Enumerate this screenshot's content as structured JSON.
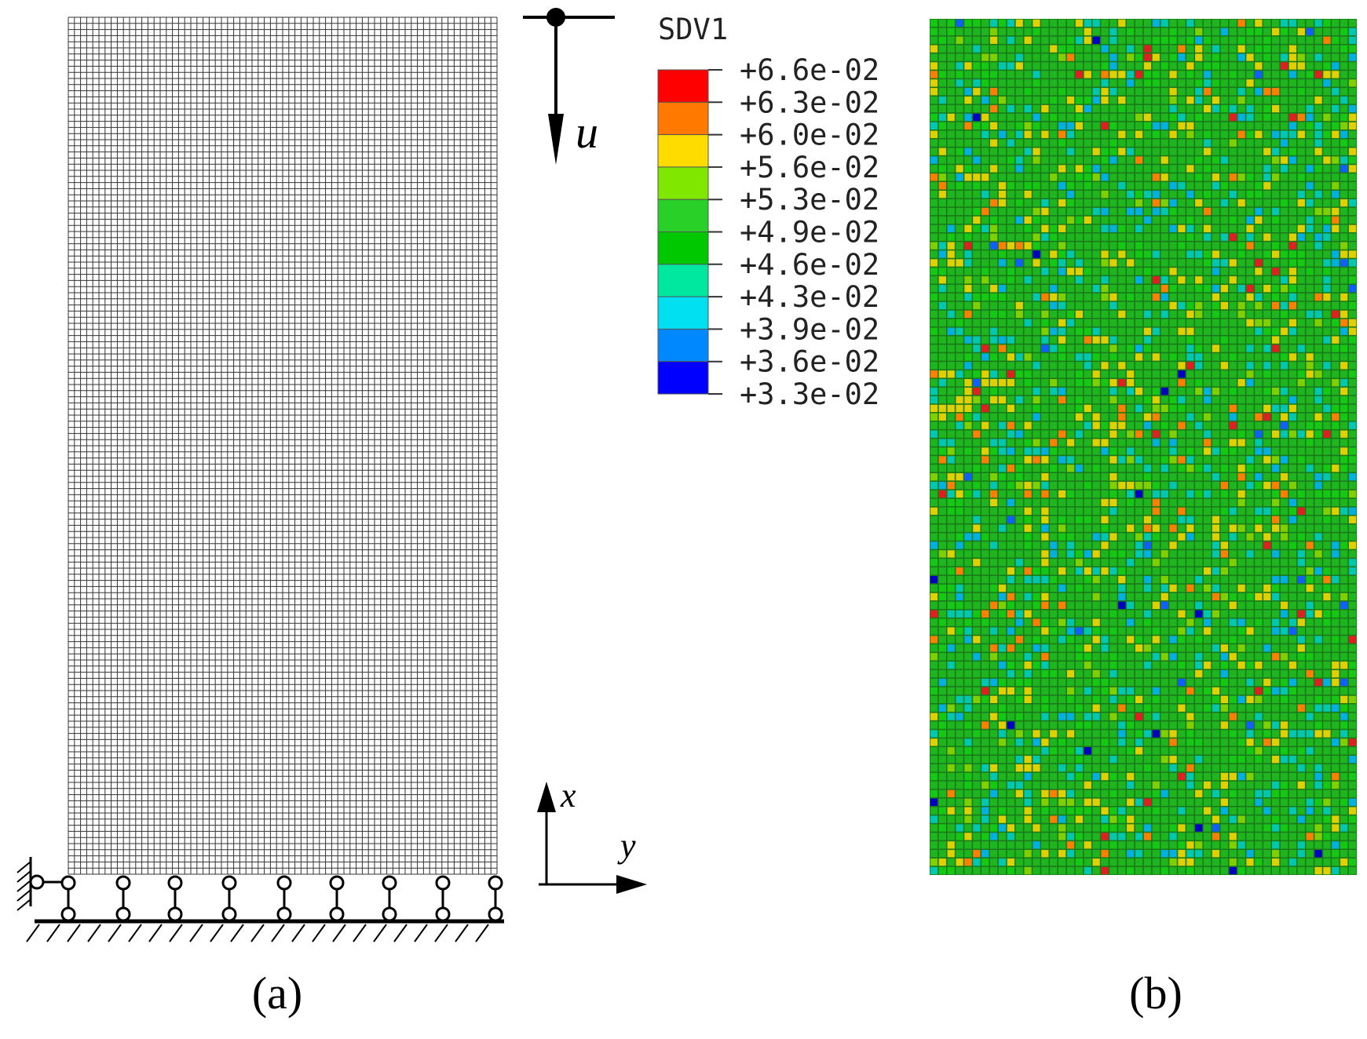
{
  "legend": {
    "title": "SDV1",
    "labels": [
      "+6.6e-02",
      "+6.3e-02",
      "+6.0e-02",
      "+5.6e-02",
      "+5.3e-02",
      "+4.9e-02",
      "+4.6e-02",
      "+4.3e-02",
      "+3.9e-02",
      "+3.6e-02",
      "+3.3e-02"
    ]
  },
  "load_label": "u",
  "axes": {
    "x": "x",
    "y": "y"
  },
  "panels": [
    "(a)",
    "(b)"
  ]
}
